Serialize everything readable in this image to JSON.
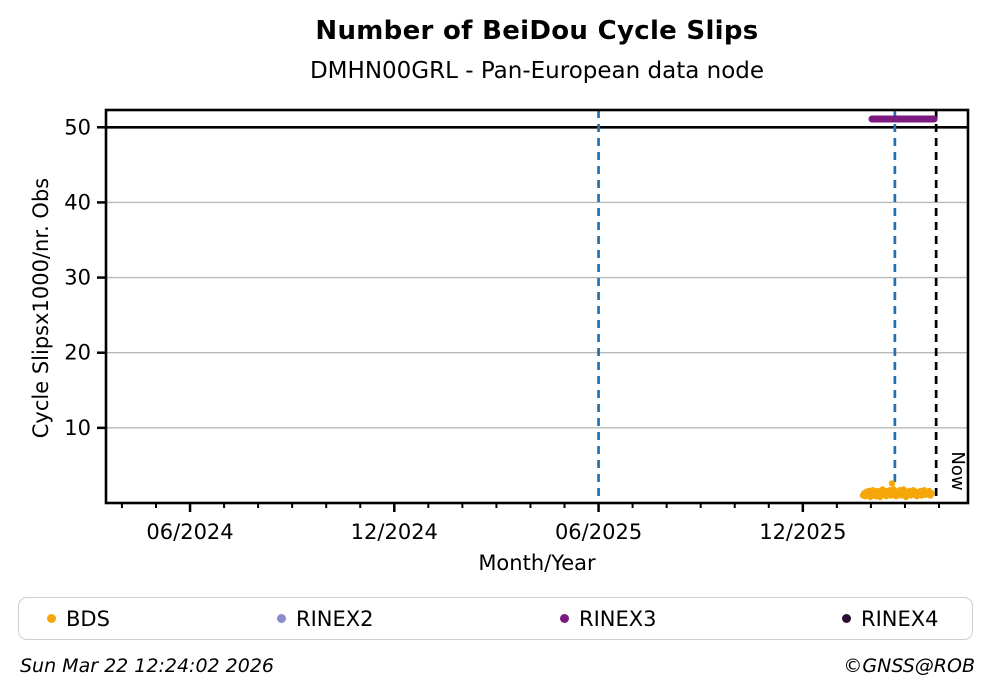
{
  "figure": {
    "footer_left": "Sun Mar 22 12:24:02 2026",
    "footer_right": "©GNSS@ROB"
  },
  "chart_data": {
    "type": "scatter",
    "title": "Number of BeiDou Cycle Slips",
    "subtitle": "DMHN00GRL - Pan-European data node",
    "xlabel": "Month/Year",
    "ylabel": "Cycle Slipsx1000/nr. Obs",
    "xlim": [
      2024.211,
      2026.321
    ],
    "ylim": [
      0,
      52.3
    ],
    "grid": true,
    "grid_color": "#b9b9b9",
    "axis_color": "#000000",
    "yticks": [
      10,
      20,
      30,
      40,
      50
    ],
    "xticks": [
      {
        "value": 2024.4167,
        "label": "06/2024"
      },
      {
        "value": 2024.9167,
        "label": "12/2024"
      },
      {
        "value": 2025.4167,
        "label": "06/2025"
      },
      {
        "value": 2025.9167,
        "label": "12/2025"
      }
    ],
    "minor_xticks": {
      "start": 2024.25,
      "step": 0.0833333,
      "count": 25
    },
    "hline": {
      "y": 50,
      "color": "#000000"
    },
    "vlines": [
      {
        "x": 2025.4167,
        "color": "#2170b5",
        "dash": "8 6",
        "label": ""
      },
      {
        "x": 2026.142,
        "color": "#2170b5",
        "dash": "8 6",
        "label": ""
      },
      {
        "x": 2026.243,
        "color": "#000000",
        "dash": "8 6",
        "label": "Now"
      }
    ],
    "legend_position": "bottom",
    "series": [
      {
        "name": "BDS",
        "color": "#f5a70a",
        "kind": "scatter",
        "marker_radius": 3.2,
        "points": [
          [
            2026.064,
            1.0
          ],
          [
            2026.067,
            1.3
          ],
          [
            2026.07,
            0.9
          ],
          [
            2026.073,
            1.5
          ],
          [
            2026.076,
            1.1
          ],
          [
            2026.079,
            1.6
          ],
          [
            2026.082,
            0.8
          ],
          [
            2026.085,
            1.2
          ],
          [
            2026.088,
            1.7
          ],
          [
            2026.091,
            1.0
          ],
          [
            2026.094,
            1.4
          ],
          [
            2026.097,
            0.9
          ],
          [
            2026.1,
            1.6
          ],
          [
            2026.103,
            1.2
          ],
          [
            2026.106,
            0.8
          ],
          [
            2026.109,
            1.5
          ],
          [
            2026.112,
            1.8
          ],
          [
            2026.115,
            1.1
          ],
          [
            2026.118,
            1.4
          ],
          [
            2026.121,
            0.9
          ],
          [
            2026.124,
            1.6
          ],
          [
            2026.127,
            1.2
          ],
          [
            2026.13,
            1.7
          ],
          [
            2026.133,
            1.0
          ],
          [
            2026.135,
            2.6
          ],
          [
            2026.136,
            1.3
          ],
          [
            2026.139,
            1.8
          ],
          [
            2026.142,
            1.1
          ],
          [
            2026.145,
            0.9
          ],
          [
            2026.148,
            1.5
          ],
          [
            2026.151,
            1.2
          ],
          [
            2026.154,
            1.7
          ],
          [
            2026.157,
            1.0
          ],
          [
            2026.16,
            1.4
          ],
          [
            2026.163,
            1.8
          ],
          [
            2026.166,
            1.1
          ],
          [
            2026.169,
            0.8
          ],
          [
            2026.172,
            1.5
          ],
          [
            2026.175,
            1.2
          ],
          [
            2026.178,
            1.6
          ],
          [
            2026.181,
            1.0
          ],
          [
            2026.184,
            1.3
          ],
          [
            2026.187,
            1.7
          ],
          [
            2026.19,
            1.1
          ],
          [
            2026.193,
            1.5
          ],
          [
            2026.196,
            0.9
          ],
          [
            2026.199,
            1.4
          ],
          [
            2026.202,
            1.2
          ],
          [
            2026.205,
            1.6
          ],
          [
            2026.208,
            1.0
          ],
          [
            2026.211,
            1.3
          ],
          [
            2026.214,
            1.7
          ],
          [
            2026.217,
            1.1
          ],
          [
            2026.22,
            1.5
          ],
          [
            2026.223,
            1.2
          ],
          [
            2026.226,
            1.6
          ],
          [
            2026.229,
            1.0
          ],
          [
            2026.232,
            1.3
          ]
        ]
      },
      {
        "name": "RINEX2",
        "color": "#8b8bd0",
        "kind": "scatter",
        "marker_radius": 3.2,
        "points": []
      },
      {
        "name": "RINEX3",
        "color": "#7b1a80",
        "kind": "line",
        "line_width": 7,
        "points": [
          [
            2026.086,
            51.1
          ],
          [
            2026.238,
            51.1
          ]
        ]
      },
      {
        "name": "RINEX4",
        "color": "#2a0d33",
        "kind": "scatter",
        "marker_radius": 3.2,
        "points": []
      }
    ]
  }
}
